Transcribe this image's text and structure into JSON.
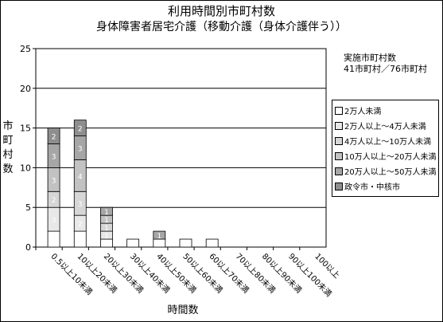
{
  "chart_data": {
    "type": "bar",
    "title": "利用時間別市町村数",
    "subtitle": "身体障害者居宅介護（移動介護（身体介護伴う））",
    "xlabel": "時間数",
    "ylabel": "市町村数",
    "ylim": [
      0,
      25
    ],
    "yticks": [
      0,
      5,
      10,
      15,
      20,
      25
    ],
    "grid": true,
    "legend_position": "right",
    "annotation_lines": [
      "実施市町村数",
      "41市町村／76市町村"
    ],
    "categories": [
      "0.5以上10未満",
      "10以上20未満",
      "20以上30未満",
      "30以上40未満",
      "40以上50未満",
      "50以上60未満",
      "60以上70未満",
      "70以上80未満",
      "80以上90未満",
      "90以上100未満",
      "100以上"
    ],
    "series": [
      {
        "name": "2万人未満",
        "values": [
          2,
          2,
          1,
          1,
          1,
          1,
          1,
          0,
          0,
          0,
          0
        ],
        "color": "#ffffff"
      },
      {
        "name": "2万人以上～4万人未満",
        "values": [
          3,
          2,
          1,
          0,
          0,
          0,
          0,
          0,
          0,
          0,
          0
        ],
        "color": "#e8e8e8"
      },
      {
        "name": "4万人以上～10万人未満",
        "values": [
          2,
          3,
          1,
          0,
          0,
          0,
          0,
          0,
          0,
          0,
          0
        ],
        "color": "#d6d6d6"
      },
      {
        "name": "10万人以上～20万人未満",
        "values": [
          3,
          4,
          1,
          0,
          0,
          0,
          0,
          0,
          0,
          0,
          0
        ],
        "color": "#c2c2c2"
      },
      {
        "name": "20万人以上～50万人未満",
        "values": [
          3,
          3,
          1,
          0,
          1,
          0,
          0,
          0,
          0,
          0,
          0
        ],
        "color": "#a6a6a6"
      },
      {
        "name": "政令市・中核市",
        "values": [
          2,
          2,
          0,
          0,
          0,
          0,
          0,
          0,
          0,
          0,
          0
        ],
        "color": "#8e8e8e"
      }
    ]
  }
}
